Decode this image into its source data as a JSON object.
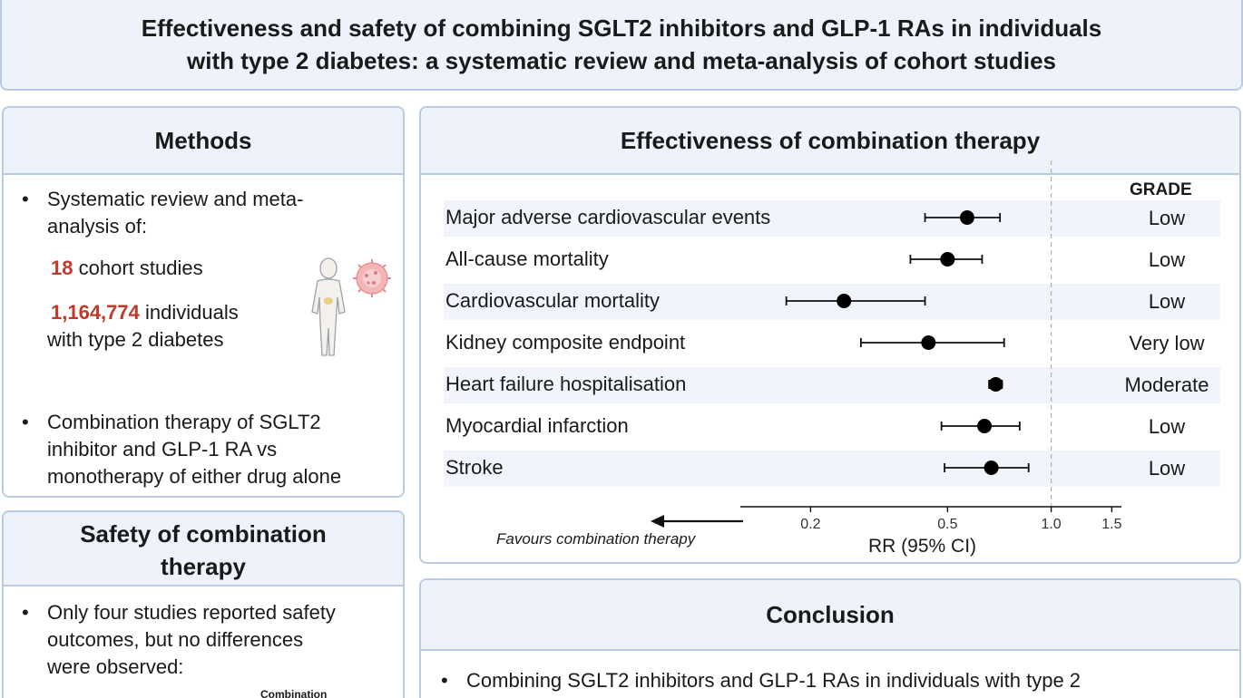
{
  "title": {
    "line1": "Effectiveness and safety of combining SGLT2 inhibitors and GLP-1 RAs in individuals",
    "line2": "with type 2 diabetes: a systematic review and meta-analysis of cohort studies"
  },
  "methods": {
    "heading": "Methods",
    "bullet1_line1": "Systematic review and meta-",
    "bullet1_line2": "analysis of:",
    "studies_count": "18",
    "studies_label": "cohort studies",
    "individuals_count": "1,164,774",
    "individuals_label": "individuals",
    "individuals_line2": "with type 2 diabetes",
    "bullet2_line1": "Combination therapy of SGLT2",
    "bullet2_line2": "inhibitor and GLP-1 RA vs",
    "bullet2_line3": "monotherapy of either drug alone"
  },
  "safety": {
    "heading_line1": "Safety of combination",
    "heading_line2": "therapy",
    "bullet_line1": "Only four studies reported safety",
    "bullet_line2": "outcomes, but no differences",
    "bullet_line3": "were observed:",
    "partial_label": "Combination"
  },
  "effectiveness": {
    "heading": "Effectiveness of combination therapy",
    "grade_header": "GRADE",
    "favours_label": "Favours combination therapy",
    "axis_title": "RR (95% CI)"
  },
  "conclusion": {
    "heading": "Conclusion",
    "bullet_line1": "Combining SGLT2 inhibitors and GLP-1 RAs in individuals with type 2"
  },
  "chart_data": {
    "type": "forest",
    "xscale": "log",
    "xlim": [
      0.125,
      1.6
    ],
    "reference_line": 1.0,
    "xticks": [
      0.2,
      0.5,
      1.0,
      1.5
    ],
    "xtick_labels": [
      "0.2",
      "0.5",
      "1.0",
      "1.5"
    ],
    "xlabel": "RR (95% CI)",
    "rows": [
      {
        "outcome": "Major adverse cardiovascular events",
        "rr": 0.57,
        "lower": 0.43,
        "upper": 0.71,
        "grade": "Low"
      },
      {
        "outcome": "All-cause mortality",
        "rr": 0.5,
        "lower": 0.39,
        "upper": 0.63,
        "grade": "Low"
      },
      {
        "outcome": "Cardiovascular mortality",
        "rr": 0.25,
        "lower": 0.17,
        "upper": 0.43,
        "grade": "Low"
      },
      {
        "outcome": "Kidney composite endpoint",
        "rr": 0.44,
        "lower": 0.28,
        "upper": 0.73,
        "grade": "Very low"
      },
      {
        "outcome": "Heart failure hospitalisation",
        "rr": 0.69,
        "lower": 0.66,
        "upper": 0.72,
        "grade": "Moderate"
      },
      {
        "outcome": "Myocardial infarction",
        "rr": 0.64,
        "lower": 0.48,
        "upper": 0.81,
        "grade": "Low"
      },
      {
        "outcome": "Stroke",
        "rr": 0.67,
        "lower": 0.49,
        "upper": 0.86,
        "grade": "Low"
      }
    ]
  }
}
